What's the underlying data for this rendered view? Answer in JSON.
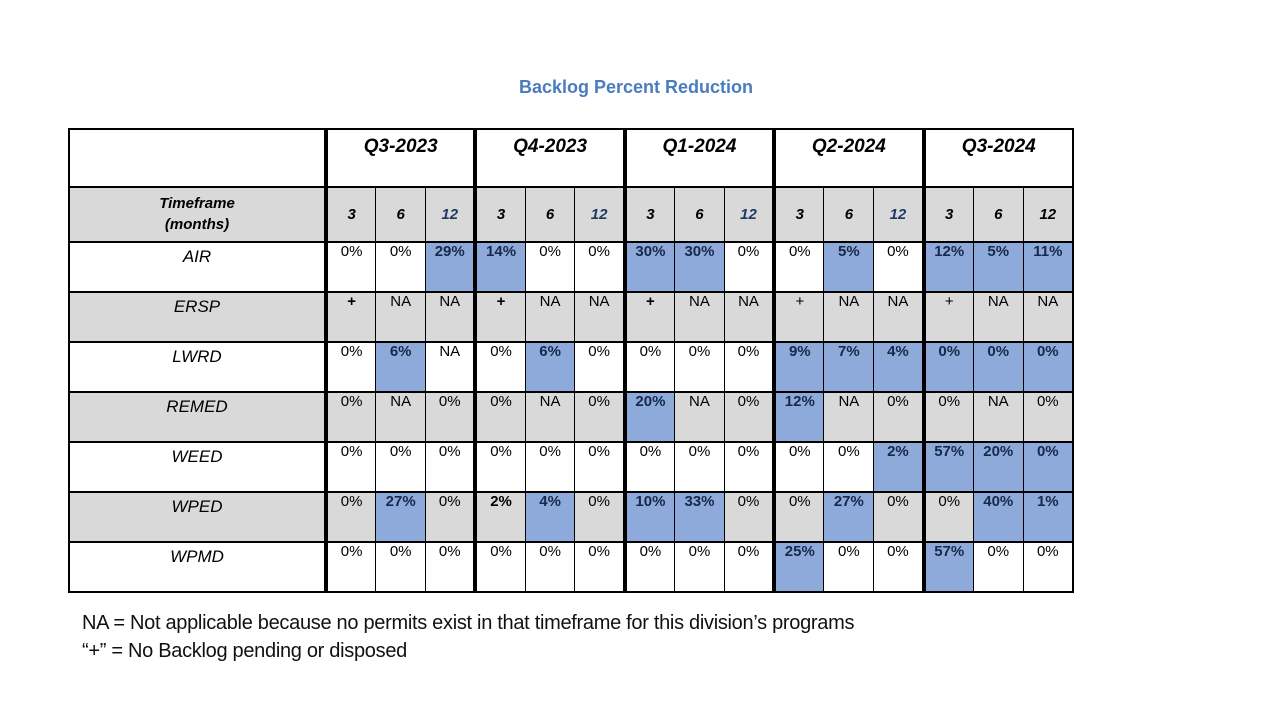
{
  "title": "Backlog Percent Reduction",
  "colors": {
    "title_blue": "#4A7CBF",
    "highlight_blue": "#8EAADB",
    "band_gray": "#D9D9D9",
    "navy_header_text": "#1F3864",
    "border_black": "#000000"
  },
  "table": {
    "corner_label": "",
    "row_header_title_line1": "Timeframe",
    "row_header_title_line2": "(months)",
    "quarters": [
      "Q3-2023",
      "Q4-2023",
      "Q1-2024",
      "Q2-2024",
      "Q3-2024"
    ],
    "subheaders": [
      {
        "label": "3"
      },
      {
        "label": "6"
      },
      {
        "label": "12",
        "navy": true
      },
      {
        "label": "3"
      },
      {
        "label": "6"
      },
      {
        "label": "12",
        "navy": true
      },
      {
        "label": "3"
      },
      {
        "label": "6"
      },
      {
        "label": "12",
        "navy": true
      },
      {
        "label": "3"
      },
      {
        "label": "6"
      },
      {
        "label": "12",
        "navy": true
      },
      {
        "label": "3"
      },
      {
        "label": "6"
      },
      {
        "label": "12"
      }
    ],
    "rows": [
      {
        "name": "AIR",
        "cells": [
          {
            "v": "0%"
          },
          {
            "v": "0%"
          },
          {
            "v": "29%",
            "hl": true
          },
          {
            "v": "14%",
            "hl": true
          },
          {
            "v": "0%"
          },
          {
            "v": "0%"
          },
          {
            "v": "30%",
            "hl": true
          },
          {
            "v": "30%",
            "hl": true
          },
          {
            "v": "0%"
          },
          {
            "v": "0%"
          },
          {
            "v": "5%",
            "hl": true
          },
          {
            "v": "0%"
          },
          {
            "v": "12%",
            "hl": true
          },
          {
            "v": "5%",
            "hl": true
          },
          {
            "v": "11%",
            "hl": true
          }
        ]
      },
      {
        "name": "ERSP",
        "cells": [
          {
            "v": "+",
            "b": true
          },
          {
            "v": "NA"
          },
          {
            "v": "NA"
          },
          {
            "v": "+",
            "b": true
          },
          {
            "v": "NA"
          },
          {
            "v": "NA"
          },
          {
            "v": "+",
            "b": true
          },
          {
            "v": "NA"
          },
          {
            "v": "NA"
          },
          {
            "v": "+"
          },
          {
            "v": "NA"
          },
          {
            "v": "NA"
          },
          {
            "v": "+"
          },
          {
            "v": "NA"
          },
          {
            "v": "NA"
          }
        ]
      },
      {
        "name": "LWRD",
        "cells": [
          {
            "v": "0%"
          },
          {
            "v": "6%",
            "hl": true
          },
          {
            "v": "NA"
          },
          {
            "v": "0%"
          },
          {
            "v": "6%",
            "hl": true
          },
          {
            "v": "0%"
          },
          {
            "v": "0%"
          },
          {
            "v": "0%"
          },
          {
            "v": "0%"
          },
          {
            "v": "9%",
            "hl": true
          },
          {
            "v": "7%",
            "hl": true
          },
          {
            "v": "4%",
            "hl": true
          },
          {
            "v": "0%",
            "hl": true
          },
          {
            "v": "0%",
            "hl": true
          },
          {
            "v": "0%",
            "hl": true
          }
        ]
      },
      {
        "name": "REMED",
        "cells": [
          {
            "v": "0%"
          },
          {
            "v": "NA"
          },
          {
            "v": "0%"
          },
          {
            "v": "0%"
          },
          {
            "v": "NA"
          },
          {
            "v": "0%"
          },
          {
            "v": "20%",
            "hl": true
          },
          {
            "v": "NA"
          },
          {
            "v": "0%"
          },
          {
            "v": "12%",
            "hl": true
          },
          {
            "v": "NA"
          },
          {
            "v": "0%"
          },
          {
            "v": "0%"
          },
          {
            "v": "NA"
          },
          {
            "v": "0%"
          }
        ]
      },
      {
        "name": "WEED",
        "cells": [
          {
            "v": "0%"
          },
          {
            "v": "0%"
          },
          {
            "v": "0%"
          },
          {
            "v": "0%"
          },
          {
            "v": "0%"
          },
          {
            "v": "0%"
          },
          {
            "v": "0%"
          },
          {
            "v": "0%"
          },
          {
            "v": "0%"
          },
          {
            "v": "0%"
          },
          {
            "v": "0%"
          },
          {
            "v": "2%",
            "hl": true
          },
          {
            "v": "57%",
            "hl": true
          },
          {
            "v": "20%",
            "hl": true
          },
          {
            "v": "0%",
            "hl": true
          }
        ]
      },
      {
        "name": "WPED",
        "cells": [
          {
            "v": "0%"
          },
          {
            "v": "27%",
            "hl": true
          },
          {
            "v": "0%"
          },
          {
            "v": "2%",
            "b": true
          },
          {
            "v": "4%",
            "hl": true
          },
          {
            "v": "0%"
          },
          {
            "v": "10%",
            "hl": true
          },
          {
            "v": "33%",
            "hl": true
          },
          {
            "v": "0%"
          },
          {
            "v": "0%"
          },
          {
            "v": "27%",
            "hl": true
          },
          {
            "v": "0%"
          },
          {
            "v": "0%"
          },
          {
            "v": "40%",
            "hl": true
          },
          {
            "v": "1%",
            "hl": true
          }
        ]
      },
      {
        "name": "WPMD",
        "cells": [
          {
            "v": "0%"
          },
          {
            "v": "0%"
          },
          {
            "v": "0%"
          },
          {
            "v": "0%"
          },
          {
            "v": "0%"
          },
          {
            "v": "0%"
          },
          {
            "v": "0%"
          },
          {
            "v": "0%"
          },
          {
            "v": "0%"
          },
          {
            "v": "25%",
            "hl": true
          },
          {
            "v": "0%"
          },
          {
            "v": "0%"
          },
          {
            "v": "57%",
            "hl": true
          },
          {
            "v": "0%"
          },
          {
            "v": "0%"
          }
        ]
      }
    ]
  },
  "footnotes": [
    "NA = Not applicable because no permits exist in that timeframe for this division’s programs",
    "“+” = No Backlog pending or disposed"
  ]
}
